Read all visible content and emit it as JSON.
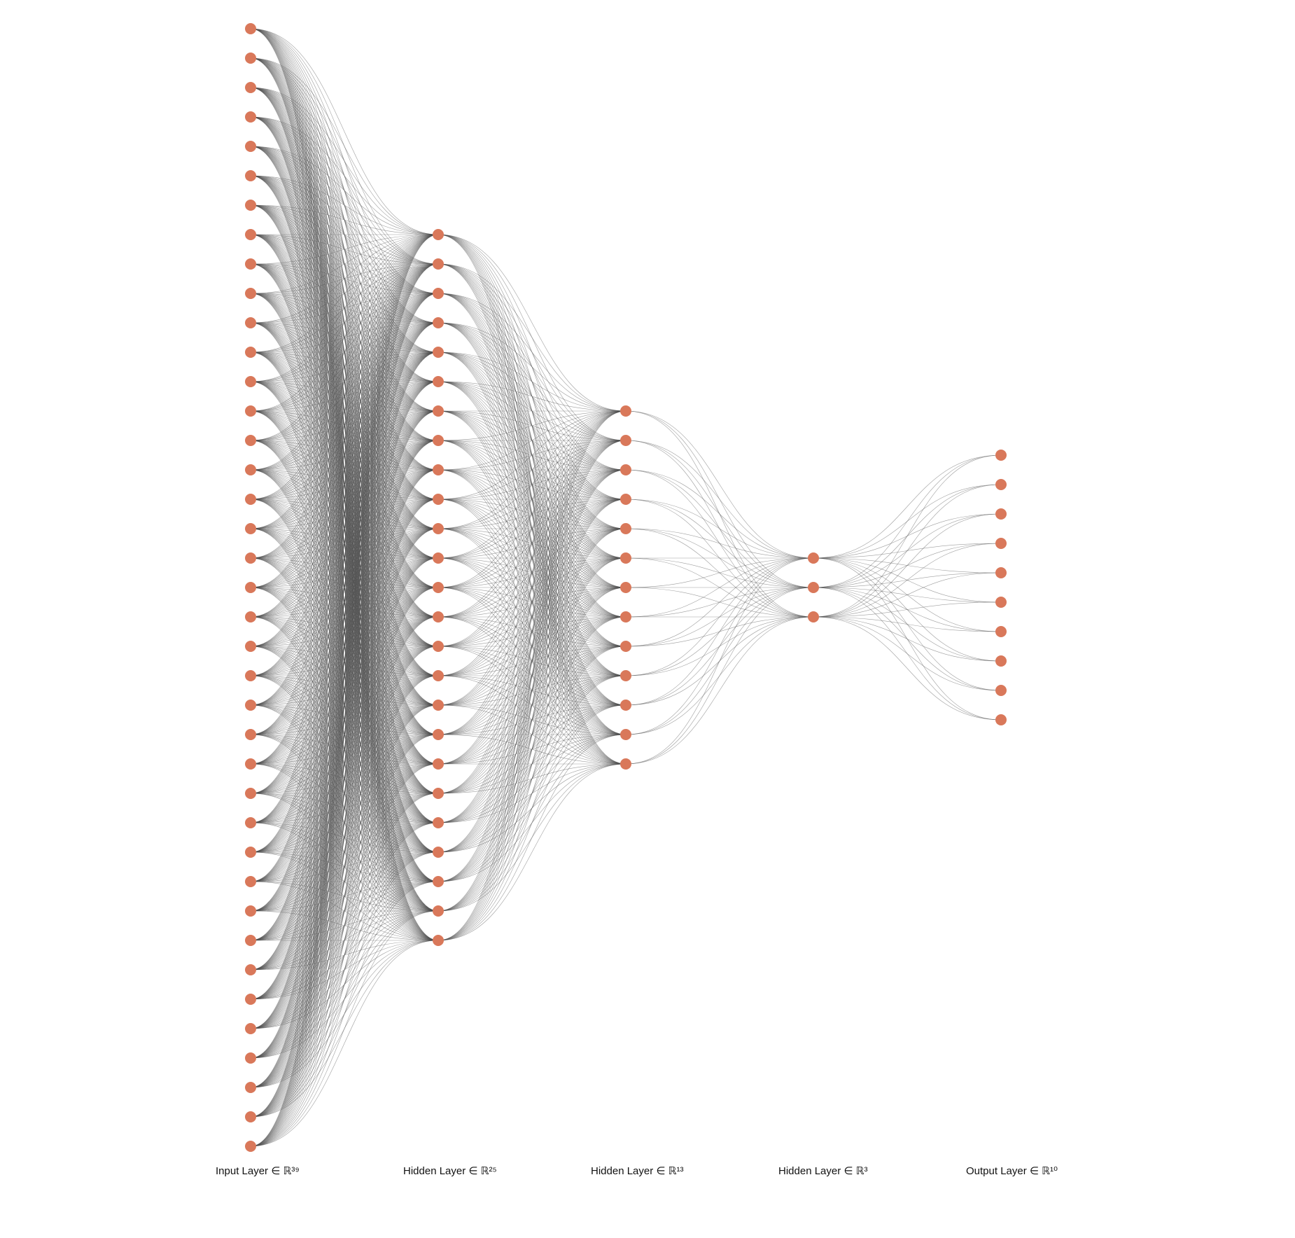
{
  "layers": [
    {
      "label": "Input Layer ∈ ℝ³⁹",
      "neurons": 39
    },
    {
      "label": "Hidden Layer ∈ ℝ²⁵",
      "neurons": 25
    },
    {
      "label": "Hidden Layer ∈ ℝ¹³",
      "neurons": 13
    },
    {
      "label": "Hidden Layer ∈ ℝ³",
      "neurons": 3
    },
    {
      "label": "Output Layer ∈ ℝ¹⁰",
      "neurons": 10
    }
  ],
  "colors": {
    "node": "#d9785a",
    "edge": "#505050",
    "background": "#ffffff",
    "label": "#111111"
  }
}
